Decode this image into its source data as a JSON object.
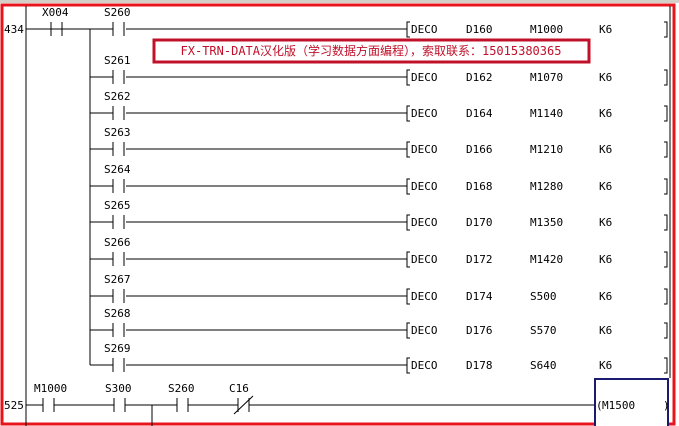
{
  "accent_colors": {
    "frame": "#e8141c",
    "note": "#c0102a",
    "cursor": "#1a1a6e"
  },
  "note_banner": "FX-TRN-DATA汉化版（学习数据方面编程），索取联系：15015380365",
  "rung1": {
    "step": "434",
    "input_contact": "X004",
    "branches": [
      {
        "contact": "S260",
        "instr": "DECO",
        "src": "D160",
        "dst": "M1000",
        "n": "K6"
      },
      {
        "contact": "S261",
        "instr": "DECO",
        "src": "D162",
        "dst": "M1070",
        "n": "K6"
      },
      {
        "contact": "S262",
        "instr": "DECO",
        "src": "D164",
        "dst": "M1140",
        "n": "K6"
      },
      {
        "contact": "S263",
        "instr": "DECO",
        "src": "D166",
        "dst": "M1210",
        "n": "K6"
      },
      {
        "contact": "S264",
        "instr": "DECO",
        "src": "D168",
        "dst": "M1280",
        "n": "K6"
      },
      {
        "contact": "S265",
        "instr": "DECO",
        "src": "D170",
        "dst": "M1350",
        "n": "K6"
      },
      {
        "contact": "S266",
        "instr": "DECO",
        "src": "D172",
        "dst": "M1420",
        "n": "K6"
      },
      {
        "contact": "S267",
        "instr": "DECO",
        "src": "D174",
        "dst": "S500",
        "n": "K6"
      },
      {
        "contact": "S268",
        "instr": "DECO",
        "src": "D176",
        "dst": "S570",
        "n": "K6"
      },
      {
        "contact": "S269",
        "instr": "DECO",
        "src": "D178",
        "dst": "S640",
        "n": "K6"
      }
    ]
  },
  "rung2": {
    "step": "525",
    "contacts": [
      {
        "label": "M1000",
        "type": "NO"
      },
      {
        "label": "S300",
        "type": "NO"
      },
      {
        "label": "S260",
        "type": "NO"
      },
      {
        "label": "C16",
        "type": "NC"
      }
    ],
    "coil": "M1500"
  }
}
